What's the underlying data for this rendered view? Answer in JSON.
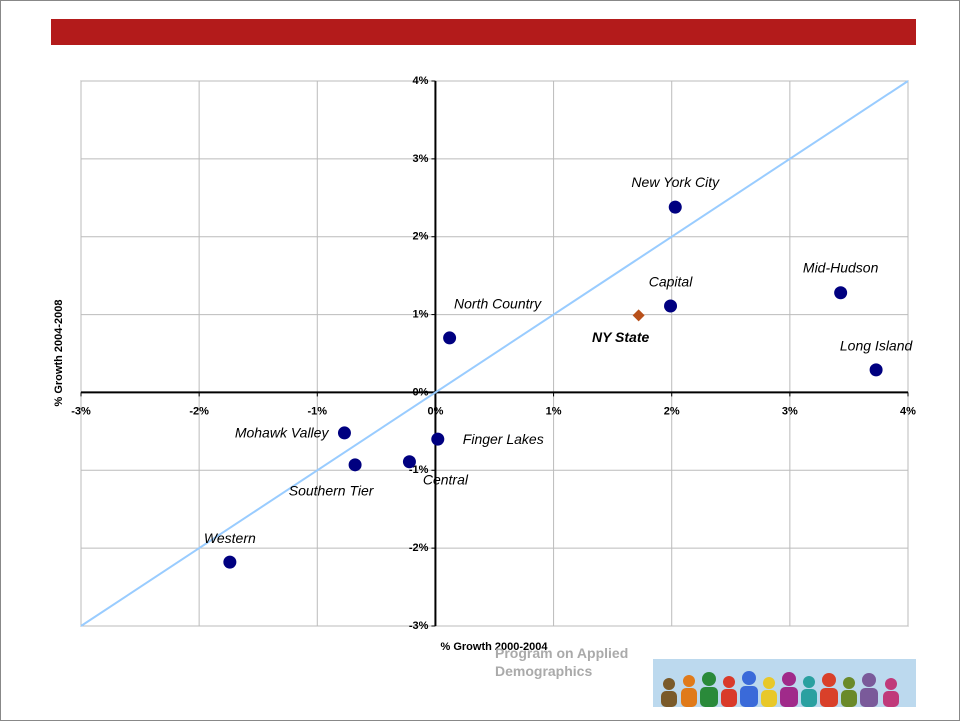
{
  "chart_data": {
    "type": "scatter",
    "xlabel": "% Growth 2000-2004",
    "ylabel": "% Growth 2004-2008",
    "xlim": [
      -3,
      4
    ],
    "ylim": [
      -3,
      4
    ],
    "xticks": [
      {
        "value": -3,
        "label": "-3%"
      },
      {
        "value": -2,
        "label": "-2%"
      },
      {
        "value": -1,
        "label": "-1%"
      },
      {
        "value": 0,
        "label": "0%"
      },
      {
        "value": 1,
        "label": "1%"
      },
      {
        "value": 2,
        "label": "2%"
      },
      {
        "value": 3,
        "label": "3%"
      },
      {
        "value": 4,
        "label": "4%"
      }
    ],
    "yticks": [
      {
        "value": -3,
        "label": "-3%"
      },
      {
        "value": -2,
        "label": "-2%"
      },
      {
        "value": -1,
        "label": "-1%"
      },
      {
        "value": 0,
        "label": "0%"
      },
      {
        "value": 1,
        "label": "1%"
      },
      {
        "value": 2,
        "label": "2%"
      },
      {
        "value": 3,
        "label": "3%"
      },
      {
        "value": 4,
        "label": "4%"
      }
    ],
    "grid": true,
    "reference_line_color": "#99ccff",
    "series": [
      {
        "color": "#000080",
        "marker": "circle",
        "labels": [
          "New York City",
          "Mid-Hudson",
          "Long Island",
          "Capital",
          "North Country",
          "Finger Lakes",
          "Central",
          "Southern Tier",
          "Mohawk Valley",
          "Western"
        ],
        "x": [
          2.03,
          3.43,
          3.73,
          1.99,
          0.12,
          0.02,
          -0.22,
          -0.68,
          -0.77,
          -1.74
        ],
        "values": [
          2.38,
          1.28,
          0.29,
          1.11,
          0.7,
          -0.6,
          -0.89,
          -0.93,
          -0.52,
          -2.18
        ]
      },
      {
        "color": "#b8501a",
        "marker": "diamond",
        "labels": [
          "NY State"
        ],
        "x": [
          1.72
        ],
        "values": [
          0.99
        ]
      }
    ]
  },
  "footer": {
    "text": "Program on Applied Demographics"
  }
}
